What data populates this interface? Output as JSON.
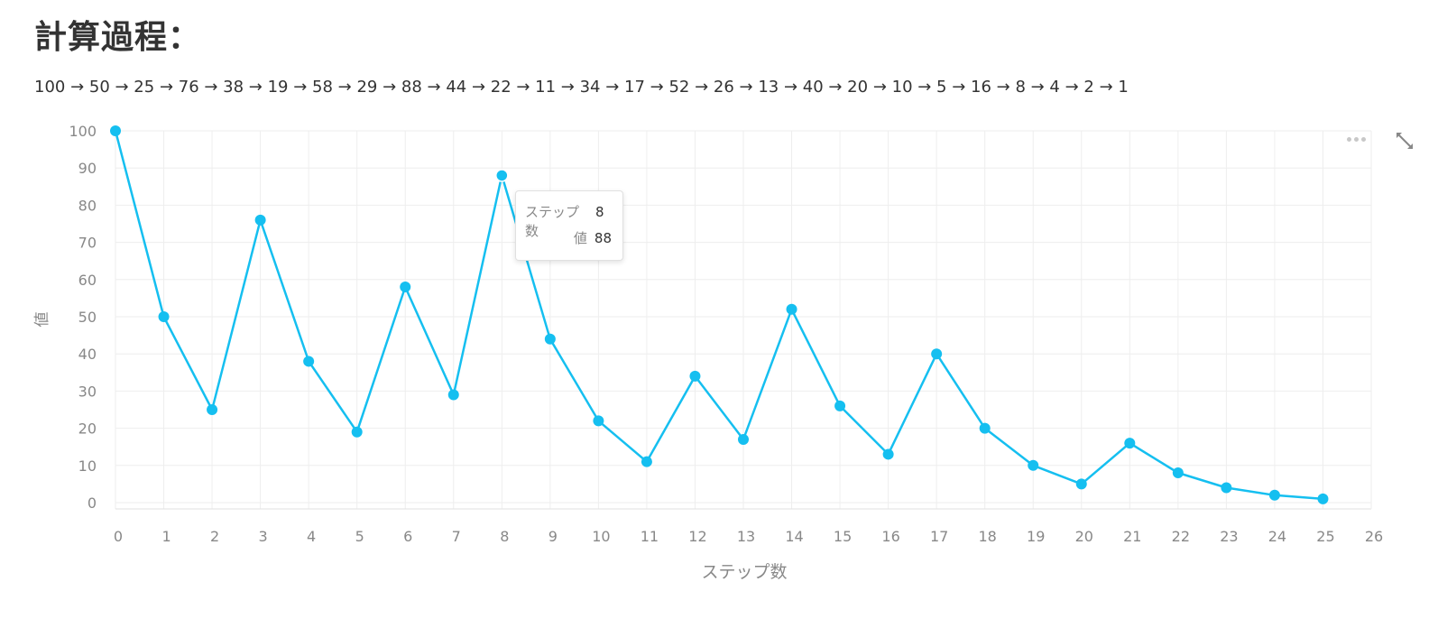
{
  "page": {
    "heading": "計算過程：",
    "sequence_text": "100 → 50 → 25 → 76 → 38 → 19 → 58 → 29 → 88 → 44 → 22 → 11 → 34 → 17 → 52 → 26 → 13 → 40 → 20 → 10 → 5 → 16 → 8 → 4 → 2 → 1"
  },
  "tooltip": {
    "rows": [
      {
        "key": "ステップ数",
        "value": "8"
      },
      {
        "key": "値",
        "value": "88"
      }
    ]
  },
  "icons": {
    "more": "more-dots-icon",
    "expand": "expand-icon"
  },
  "chart_data": {
    "type": "line",
    "title": "",
    "xlabel": "ステップ数",
    "ylabel": "値",
    "x": [
      0,
      1,
      2,
      3,
      4,
      5,
      6,
      7,
      8,
      9,
      10,
      11,
      12,
      13,
      14,
      15,
      16,
      17,
      18,
      19,
      20,
      21,
      22,
      23,
      24,
      25
    ],
    "series": [
      {
        "values": [
          100,
          50,
          25,
          76,
          38,
          19,
          58,
          29,
          88,
          44,
          22,
          11,
          34,
          17,
          52,
          26,
          13,
          40,
          20,
          10,
          5,
          16,
          8,
          4,
          2,
          1
        ],
        "color": "#15bff0"
      }
    ],
    "xlim": [
      0,
      26
    ],
    "ylim": [
      0,
      100
    ],
    "xticks": [
      "0",
      "1",
      "2",
      "3",
      "4",
      "5",
      "6",
      "7",
      "8",
      "9",
      "10",
      "11",
      "12",
      "13",
      "14",
      "15",
      "16",
      "17",
      "18",
      "19",
      "20",
      "21",
      "22",
      "23",
      "24",
      "25",
      "26"
    ],
    "yticks": [
      "0",
      "10",
      "20",
      "30",
      "40",
      "50",
      "60",
      "70",
      "80",
      "90",
      "100"
    ],
    "grid": true,
    "highlight_index": 8
  }
}
